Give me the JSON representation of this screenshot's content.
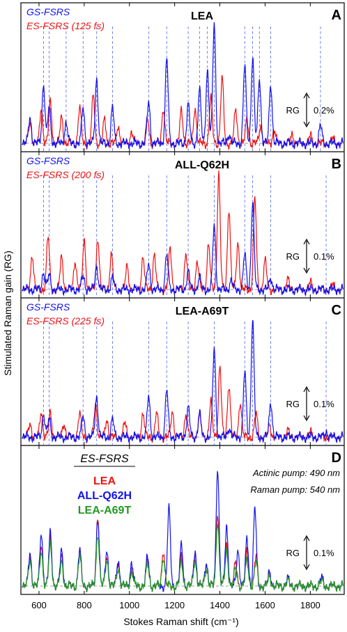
{
  "figure": {
    "ylabel": "Stimulated Raman gain (RG)",
    "xlabel": "Stokes Raman shift (cm⁻¹)"
  },
  "colors": {
    "gs": "#1111ee",
    "es": "#ee1111",
    "lea": "#ee1111",
    "q62h": "#1111ee",
    "a69t": "#229922",
    "vline": "#5566ee",
    "baseline": "#999999"
  },
  "chart_data": [
    {
      "type": "line",
      "panel_letter": "A",
      "panel_title": "LEA",
      "legend": [
        "GS-FSRS",
        "ES-FSRS (125 fs)"
      ],
      "xlim": [
        520,
        1950
      ],
      "xticks": [
        600,
        800,
        1000,
        1200,
        1400,
        1600,
        1800
      ],
      "rg_scale": "RG",
      "rg_value": "0.2%",
      "ref_lines": [
        620,
        645,
        720,
        795,
        855,
        925,
        1085,
        1165,
        1260,
        1310,
        1345,
        1375,
        1510,
        1545,
        1575,
        1625,
        1845
      ],
      "series": [
        {
          "name": "GS-FSRS",
          "peaks": [
            [
              560,
              0.22
            ],
            [
              620,
              0.5
            ],
            [
              645,
              0.3
            ],
            [
              720,
              0.18
            ],
            [
              795,
              0.3
            ],
            [
              855,
              0.55
            ],
            [
              925,
              0.3
            ],
            [
              1085,
              0.35
            ],
            [
              1165,
              0.72
            ],
            [
              1260,
              0.33
            ],
            [
              1310,
              0.45
            ],
            [
              1345,
              0.62
            ],
            [
              1375,
              1.0
            ],
            [
              1440,
              0.08
            ],
            [
              1510,
              0.65
            ],
            [
              1545,
              0.72
            ],
            [
              1575,
              0.55
            ],
            [
              1625,
              0.5
            ],
            [
              1845,
              0.15
            ]
          ]
        },
        {
          "name": "ES-FSRS (125 fs)",
          "peaks": [
            [
              560,
              0.18
            ],
            [
              610,
              0.3
            ],
            [
              650,
              0.35
            ],
            [
              700,
              0.22
            ],
            [
              780,
              0.3
            ],
            [
              840,
              0.4
            ],
            [
              890,
              0.2
            ],
            [
              950,
              0.15
            ],
            [
              1010,
              0.1
            ],
            [
              1080,
              0.2
            ],
            [
              1150,
              0.3
            ],
            [
              1230,
              0.28
            ],
            [
              1290,
              0.3
            ],
            [
              1360,
              0.38
            ],
            [
              1410,
              0.55
            ],
            [
              1470,
              0.28
            ],
            [
              1520,
              0.2
            ],
            [
              1580,
              0.15
            ],
            [
              1640,
              0.12
            ],
            [
              1720,
              0.08
            ],
            [
              1800,
              0.06
            ],
            [
              1900,
              0.04
            ]
          ]
        }
      ]
    },
    {
      "type": "line",
      "panel_letter": "B",
      "panel_title": "ALL-Q62H",
      "legend": [
        "GS-FSRS",
        "ES-FSRS (200 fs)"
      ],
      "xlim": [
        520,
        1950
      ],
      "xticks": [
        600,
        800,
        1000,
        1200,
        1400,
        1600,
        1800
      ],
      "rg_scale": "RG",
      "rg_value": "0.1%",
      "ref_lines": [
        620,
        645,
        795,
        855,
        925,
        1085,
        1165,
        1260,
        1375,
        1510,
        1545,
        1625,
        1870
      ],
      "series": [
        {
          "name": "GS-FSRS",
          "peaks": [
            [
              620,
              0.15
            ],
            [
              645,
              0.12
            ],
            [
              795,
              0.12
            ],
            [
              855,
              0.2
            ],
            [
              925,
              0.1
            ],
            [
              1085,
              0.22
            ],
            [
              1165,
              0.3
            ],
            [
              1260,
              0.15
            ],
            [
              1310,
              0.1
            ],
            [
              1375,
              0.55
            ],
            [
              1450,
              0.08
            ],
            [
              1510,
              0.3
            ],
            [
              1545,
              0.75
            ],
            [
              1625,
              0.1
            ]
          ]
        },
        {
          "name": "ES-FSRS (200 fs)",
          "peaks": [
            [
              570,
              0.3
            ],
            [
              640,
              0.45
            ],
            [
              700,
              0.28
            ],
            [
              760,
              0.25
            ],
            [
              800,
              0.42
            ],
            [
              860,
              0.45
            ],
            [
              920,
              0.3
            ],
            [
              990,
              0.2
            ],
            [
              1060,
              0.28
            ],
            [
              1110,
              0.3
            ],
            [
              1180,
              0.35
            ],
            [
              1250,
              0.32
            ],
            [
              1300,
              0.25
            ],
            [
              1350,
              0.4
            ],
            [
              1395,
              1.0
            ],
            [
              1440,
              0.7
            ],
            [
              1480,
              0.4
            ],
            [
              1555,
              0.78
            ],
            [
              1600,
              0.25
            ],
            [
              1700,
              0.08
            ],
            [
              1800,
              0.06
            ],
            [
              1900,
              0.04
            ]
          ]
        }
      ]
    },
    {
      "type": "line",
      "panel_letter": "C",
      "panel_title": "LEA-A69T",
      "legend": [
        "GS-FSRS",
        "ES-FSRS (225 fs)"
      ],
      "xlim": [
        520,
        1950
      ],
      "xticks": [
        600,
        800,
        1000,
        1200,
        1400,
        1600,
        1800
      ],
      "rg_scale": "RG",
      "rg_value": "0.1%",
      "ref_lines": [
        620,
        645,
        795,
        855,
        925,
        1085,
        1165,
        1260,
        1375,
        1510,
        1545,
        1625,
        1870
      ],
      "series": [
        {
          "name": "GS-FSRS",
          "peaks": [
            [
              620,
              0.2
            ],
            [
              645,
              0.15
            ],
            [
              795,
              0.18
            ],
            [
              855,
              0.35
            ],
            [
              925,
              0.15
            ],
            [
              1085,
              0.35
            ],
            [
              1165,
              0.4
            ],
            [
              1260,
              0.25
            ],
            [
              1310,
              0.2
            ],
            [
              1375,
              0.75
            ],
            [
              1440,
              0.08
            ],
            [
              1510,
              0.55
            ],
            [
              1545,
              1.0
            ],
            [
              1625,
              0.3
            ],
            [
              1870,
              0.05
            ]
          ]
        },
        {
          "name": "ES-FSRS (225 fs)",
          "peaks": [
            [
              560,
              0.12
            ],
            [
              610,
              0.22
            ],
            [
              650,
              0.2
            ],
            [
              710,
              0.12
            ],
            [
              780,
              0.2
            ],
            [
              850,
              0.28
            ],
            [
              900,
              0.15
            ],
            [
              980,
              0.12
            ],
            [
              1060,
              0.2
            ],
            [
              1120,
              0.2
            ],
            [
              1190,
              0.22
            ],
            [
              1250,
              0.2
            ],
            [
              1310,
              0.18
            ],
            [
              1360,
              0.3
            ],
            [
              1400,
              0.6
            ],
            [
              1440,
              0.45
            ],
            [
              1490,
              0.3
            ],
            [
              1560,
              0.2
            ],
            [
              1620,
              0.1
            ],
            [
              1700,
              0.05
            ],
            [
              1800,
              0.04
            ]
          ]
        }
      ]
    },
    {
      "type": "line",
      "panel_letter": "D",
      "panel_title": "ES-FSRS",
      "legend": [
        "LEA",
        "ALL-Q62H",
        "LEA-A69T"
      ],
      "annotations": [
        "Actinic pump: 490 nm",
        "Raman pump: 540 nm"
      ],
      "xlim": [
        520,
        1950
      ],
      "xticks": [
        600,
        800,
        1000,
        1200,
        1400,
        1600,
        1800
      ],
      "xticklabels": [
        "600",
        "800",
        "1000",
        "1200",
        "1400",
        "1600",
        "1800"
      ],
      "rg_scale": "RG",
      "rg_value": "0.1%",
      "series": [
        {
          "name": "LEA",
          "peaks": [
            [
              560,
              0.25
            ],
            [
              610,
              0.35
            ],
            [
              650,
              0.4
            ],
            [
              700,
              0.25
            ],
            [
              780,
              0.3
            ],
            [
              860,
              0.6
            ],
            [
              900,
              0.25
            ],
            [
              950,
              0.2
            ],
            [
              1010,
              0.15
            ],
            [
              1080,
              0.22
            ],
            [
              1150,
              0.3
            ],
            [
              1230,
              0.25
            ],
            [
              1290,
              0.28
            ],
            [
              1340,
              0.2
            ],
            [
              1390,
              0.62
            ],
            [
              1430,
              0.35
            ],
            [
              1470,
              0.2
            ],
            [
              1520,
              0.3
            ],
            [
              1560,
              0.25
            ],
            [
              1620,
              0.1
            ],
            [
              1700,
              0.05
            ],
            [
              1850,
              0.05
            ]
          ]
        },
        {
          "name": "ALL-Q62H",
          "peaks": [
            [
              560,
              0.28
            ],
            [
              610,
              0.45
            ],
            [
              650,
              0.45
            ],
            [
              700,
              0.3
            ],
            [
              780,
              0.3
            ],
            [
              860,
              0.58
            ],
            [
              900,
              0.3
            ],
            [
              950,
              0.22
            ],
            [
              1010,
              0.2
            ],
            [
              1080,
              0.25
            ],
            [
              1175,
              0.65
            ],
            [
              1230,
              0.35
            ],
            [
              1290,
              0.3
            ],
            [
              1340,
              0.2
            ],
            [
              1390,
              1.0
            ],
            [
              1430,
              0.5
            ],
            [
              1480,
              0.3
            ],
            [
              1520,
              0.4
            ],
            [
              1555,
              0.65
            ],
            [
              1620,
              0.12
            ],
            [
              1700,
              0.06
            ],
            [
              1850,
              0.07
            ]
          ]
        },
        {
          "name": "LEA-A69T",
          "peaks": [
            [
              560,
              0.22
            ],
            [
              610,
              0.3
            ],
            [
              650,
              0.35
            ],
            [
              700,
              0.2
            ],
            [
              780,
              0.25
            ],
            [
              860,
              0.45
            ],
            [
              900,
              0.22
            ],
            [
              950,
              0.15
            ],
            [
              1010,
              0.12
            ],
            [
              1080,
              0.18
            ],
            [
              1150,
              0.25
            ],
            [
              1230,
              0.2
            ],
            [
              1290,
              0.22
            ],
            [
              1340,
              0.15
            ],
            [
              1390,
              0.55
            ],
            [
              1430,
              0.3
            ],
            [
              1470,
              0.15
            ],
            [
              1520,
              0.22
            ],
            [
              1560,
              0.2
            ],
            [
              1620,
              0.08
            ],
            [
              1700,
              0.04
            ],
            [
              1850,
              0.04
            ]
          ]
        }
      ]
    }
  ]
}
